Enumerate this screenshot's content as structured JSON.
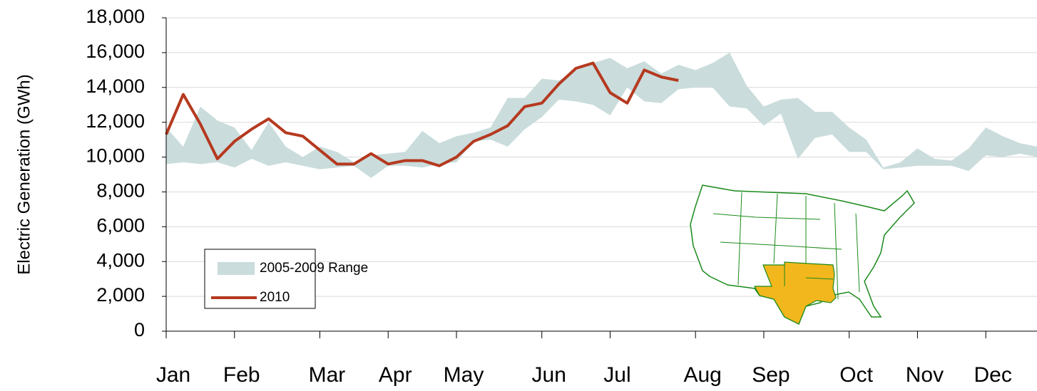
{
  "chart_data": {
    "type": "line",
    "ylabel": "Electric Generation (GWh)",
    "categories": [
      "Jan",
      null,
      null,
      null,
      "Feb",
      null,
      null,
      null,
      null,
      "Mar",
      null,
      null,
      null,
      "Apr",
      null,
      null,
      null,
      "May",
      null,
      null,
      null,
      null,
      "Jun",
      null,
      null,
      null,
      "Jul",
      null,
      null,
      null,
      null,
      "Aug",
      null,
      null,
      null,
      "Sep",
      null,
      null,
      null,
      null,
      "Oct",
      null,
      null,
      null,
      "Nov",
      null,
      null,
      null,
      "Dec",
      null,
      null,
      null
    ],
    "series": [
      {
        "name": "2005-2009 Range",
        "type": "range",
        "color": "#cadcdc",
        "high": [
          11700,
          10600,
          12900,
          12100,
          11700,
          10400,
          12000,
          10600,
          10000,
          10600,
          10300,
          9700,
          10100,
          10200,
          10300,
          11500,
          10800,
          11200,
          11400,
          11700,
          13400,
          13400,
          14500,
          14400,
          15000,
          15400,
          15700,
          15100,
          15500,
          14800,
          15300,
          15000,
          15400,
          16000,
          14100,
          12900,
          13300,
          13400,
          12600,
          12600,
          11700,
          11000,
          9400,
          9700,
          10500,
          9900,
          9800,
          10500,
          11700,
          11200,
          10800,
          10600
        ],
        "low": [
          9600,
          9700,
          9600,
          9700,
          9400,
          9900,
          9500,
          9700,
          9500,
          9300,
          9400,
          9500,
          8800,
          9500,
          9500,
          9400,
          9600,
          9700,
          10900,
          11000,
          10600,
          11600,
          12300,
          13300,
          13200,
          13000,
          12400,
          14000,
          13200,
          13100,
          13900,
          14000,
          14000,
          12900,
          12800,
          11800,
          12500,
          9900,
          11100,
          11300,
          10300,
          10300,
          9300,
          9400,
          9500,
          9500,
          9500,
          9200,
          10100,
          10000,
          10200,
          10000
        ]
      },
      {
        "name": "2010",
        "type": "line",
        "color": "#b5391f",
        "values": [
          11300,
          13600,
          11900,
          9900,
          10900,
          11600,
          12200,
          11400,
          11200,
          10400,
          9600,
          9600,
          10200,
          9600,
          9800,
          9800,
          9500,
          10000,
          10900,
          11300,
          11800,
          12900,
          13100,
          14200,
          15100,
          15400,
          13700,
          13100,
          15000,
          14600,
          14400,
          null,
          null,
          null,
          null,
          null,
          null,
          null,
          null,
          null,
          null,
          null,
          null,
          null,
          null,
          null,
          null,
          null,
          null,
          null,
          null,
          null
        ]
      }
    ],
    "ylim": [
      0,
      18000
    ],
    "yticks": [
      0,
      {
        "value": 2000,
        "label": "2,000"
      },
      {
        "value": 4000,
        "label": "4,000"
      },
      {
        "value": 6000,
        "label": "6,000"
      },
      {
        "value": 8000,
        "label": "8,000"
      },
      {
        "value": 10000,
        "label": "10,000"
      },
      {
        "value": 12000,
        "label": "12,000"
      },
      {
        "value": 14000,
        "label": "14,000"
      },
      {
        "value": 16000,
        "label": "16,000"
      },
      {
        "value": 18000,
        "label": "18,000"
      }
    ],
    "grid": true
  }
}
